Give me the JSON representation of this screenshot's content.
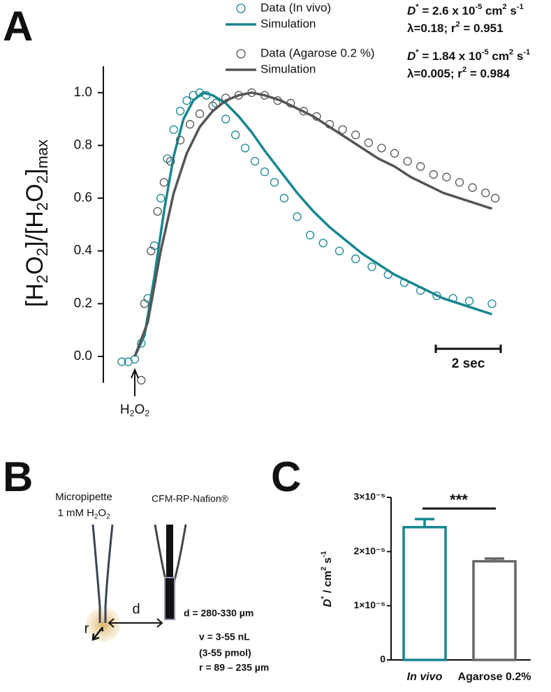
{
  "chart_data": [
    {
      "type": "line",
      "panel_label": "A",
      "y_label": [
        {
          "text": "[H"
        },
        {
          "text": "2",
          "style": "sub"
        },
        {
          "text": "O"
        },
        {
          "text": "2",
          "style": "sub"
        },
        {
          "text": "]/[H"
        },
        {
          "text": "2",
          "style": "sub"
        },
        {
          "text": "O"
        },
        {
          "text": "2",
          "style": "sub"
        },
        {
          "text": "]"
        },
        {
          "text": "max",
          "style": "sub"
        }
      ],
      "xlim": [
        -0.5,
        11.3
      ],
      "ylim": [
        -0.1,
        1.1
      ],
      "yticks": [
        {
          "value": 0,
          "label": "0.0"
        },
        0.2,
        0.4,
        0.6,
        0.8,
        {
          "value": 1,
          "label": "1.0"
        }
      ],
      "series": [
        {
          "name": "Data (In vivo)",
          "style": "markers",
          "color": "#17868f",
          "x": [
            -0.4,
            -0.2,
            0,
            0.2,
            0.4,
            0.6,
            0.8,
            1.0,
            1.2,
            1.4,
            1.6,
            1.8,
            2.0,
            2.2,
            2.5,
            2.8,
            3.1,
            3.4,
            3.7,
            4.0,
            4.3,
            4.6,
            5.0,
            5.4,
            5.8,
            6.3,
            6.8,
            7.3,
            7.8,
            8.3,
            8.8,
            9.3,
            9.8,
            10.3,
            11.0
          ],
          "values": [
            -0.02,
            -0.02,
            -0.01,
            0.05,
            0.22,
            0.42,
            0.6,
            0.75,
            0.86,
            0.93,
            0.97,
            0.99,
            1.0,
            0.99,
            0.96,
            0.9,
            0.84,
            0.79,
            0.74,
            0.7,
            0.66,
            0.6,
            0.53,
            0.46,
            0.43,
            0.4,
            0.37,
            0.34,
            0.31,
            0.28,
            0.25,
            0.23,
            0.22,
            0.21,
            0.2
          ]
        },
        {
          "name": "Simulation",
          "style": "line",
          "color": "#17868f",
          "x": [
            0,
            0.3,
            0.6,
            0.9,
            1.2,
            1.5,
            1.8,
            2.1,
            2.4,
            2.8,
            3.2,
            3.6,
            4.0,
            4.5,
            5.0,
            5.5,
            6.0,
            6.5,
            7.0,
            7.5,
            8.0,
            8.5,
            9.0,
            9.5,
            10.0,
            10.5,
            11.0
          ],
          "values": [
            0,
            0.08,
            0.3,
            0.55,
            0.76,
            0.9,
            0.97,
            1.0,
            0.99,
            0.96,
            0.91,
            0.85,
            0.78,
            0.7,
            0.62,
            0.55,
            0.49,
            0.44,
            0.39,
            0.35,
            0.31,
            0.28,
            0.25,
            0.22,
            0.2,
            0.18,
            0.16
          ]
        },
        {
          "name": "Data (Agarose 0.2 %)",
          "style": "markers",
          "color": "#555555",
          "x": [
            0.2,
            0.3,
            0.5,
            0.7,
            0.9,
            1.1,
            1.4,
            1.7,
            2.0,
            2.4,
            2.8,
            3.2,
            3.6,
            4.0,
            4.4,
            4.8,
            5.2,
            5.6,
            6.0,
            6.4,
            6.8,
            7.2,
            7.6,
            8.0,
            8.4,
            8.8,
            9.2,
            9.6,
            10.0,
            10.4,
            10.8,
            11.1
          ],
          "values": [
            -0.09,
            0.2,
            0.4,
            0.55,
            0.66,
            0.74,
            0.82,
            0.88,
            0.92,
            0.95,
            0.98,
            0.99,
            1.0,
            0.99,
            0.97,
            0.96,
            0.93,
            0.91,
            0.88,
            0.86,
            0.84,
            0.81,
            0.79,
            0.77,
            0.74,
            0.72,
            0.69,
            0.68,
            0.66,
            0.64,
            0.62,
            0.6
          ]
        },
        {
          "name": "Simulation",
          "style": "line",
          "color": "#555555",
          "x": [
            0,
            0.4,
            0.8,
            1.2,
            1.6,
            2.0,
            2.4,
            2.8,
            3.2,
            3.6,
            4.0,
            4.5,
            5.0,
            5.5,
            6.0,
            6.5,
            7.0,
            7.5,
            8.0,
            8.5,
            9.0,
            9.5,
            10.0,
            10.5,
            11.0
          ],
          "values": [
            0,
            0.13,
            0.4,
            0.62,
            0.77,
            0.87,
            0.93,
            0.97,
            0.99,
            1.0,
            0.99,
            0.97,
            0.94,
            0.91,
            0.87,
            0.83,
            0.79,
            0.75,
            0.72,
            0.68,
            0.65,
            0.62,
            0.6,
            0.58,
            0.56
          ]
        }
      ],
      "annotations": [
        {
          "color": "#17868f",
          "lines": [
            [
              {
                "text": "D",
                "style": "i"
              },
              {
                "text": "*",
                "style": "sup"
              },
              {
                "text": " = 2.6 x 10"
              },
              {
                "text": "-5",
                "style": "sup"
              },
              {
                "text": " cm"
              },
              {
                "text": "2",
                "style": "sup"
              },
              {
                "text": " s"
              },
              {
                "text": "-1",
                "style": "sup"
              }
            ],
            [
              {
                "text": "λ=0.18; r"
              },
              {
                "text": "2",
                "style": "sup"
              },
              {
                "text": " = 0.951"
              }
            ]
          ]
        },
        {
          "color": "#555555",
          "lines": [
            [
              {
                "text": "D",
                "style": "i"
              },
              {
                "text": "*",
                "style": "sup"
              },
              {
                "text": " = 1.84 x 10"
              },
              {
                "text": "-5",
                "style": "sup"
              },
              {
                "text": " cm"
              },
              {
                "text": "2",
                "style": "sup"
              },
              {
                "text": " s"
              },
              {
                "text": "-1",
                "style": "sup"
              }
            ],
            [
              {
                "text": "λ=0.005; r"
              },
              {
                "text": "2",
                "style": "sup"
              },
              {
                "text": " = 0.984"
              }
            ]
          ]
        }
      ],
      "injection": {
        "x": 0,
        "label": [
          {
            "text": "H"
          },
          {
            "text": "2",
            "style": "sub"
          },
          {
            "text": "O"
          },
          {
            "text": "2",
            "style": "sub"
          }
        ]
      },
      "scale_bar": {
        "length": 2,
        "label": "2 sec"
      }
    },
    {
      "type": "bar",
      "panel_label": "C",
      "y_label": [
        {
          "text": "D",
          "style": "i"
        },
        {
          "text": "*",
          "style": "sup"
        },
        {
          "text": " / cm"
        },
        {
          "text": "2",
          "style": "sup"
        },
        {
          "text": " s"
        },
        {
          "text": "-1",
          "style": "sup"
        }
      ],
      "categories": [
        "In vivo",
        "Agarose 0.2%"
      ],
      "values": [
        2.45e-05,
        1.82e-05
      ],
      "errors": [
        1.5e-06,
        5e-07
      ],
      "colors": [
        "#17868f",
        "#666666"
      ],
      "ylim": [
        0,
        3e-05
      ],
      "yticks": [
        0,
        {
          "value": 1e-05,
          "label": "1×10⁻⁵"
        },
        {
          "value": 2e-05,
          "label": "2×10⁻⁵"
        },
        {
          "value": 3e-05,
          "label": "3×10⁻⁵"
        }
      ],
      "significance": "***"
    }
  ],
  "diagram": {
    "panel_label": "B",
    "pipette_label": [
      "Micropipette",
      [
        {
          "text": "1 mM H"
        },
        {
          "text": "2",
          "style": "sub"
        },
        {
          "text": "O"
        },
        {
          "text": "2",
          "style": "sub"
        }
      ]
    ],
    "electrode_label": "CFM-RP-Nafion®",
    "distance_symbol": "d",
    "radius_symbol": "r",
    "specs": [
      "d = 280-330 µm",
      "v = 3-55 nL",
      "(3-55 pmol)",
      "r = 89 – 235 µm"
    ]
  }
}
